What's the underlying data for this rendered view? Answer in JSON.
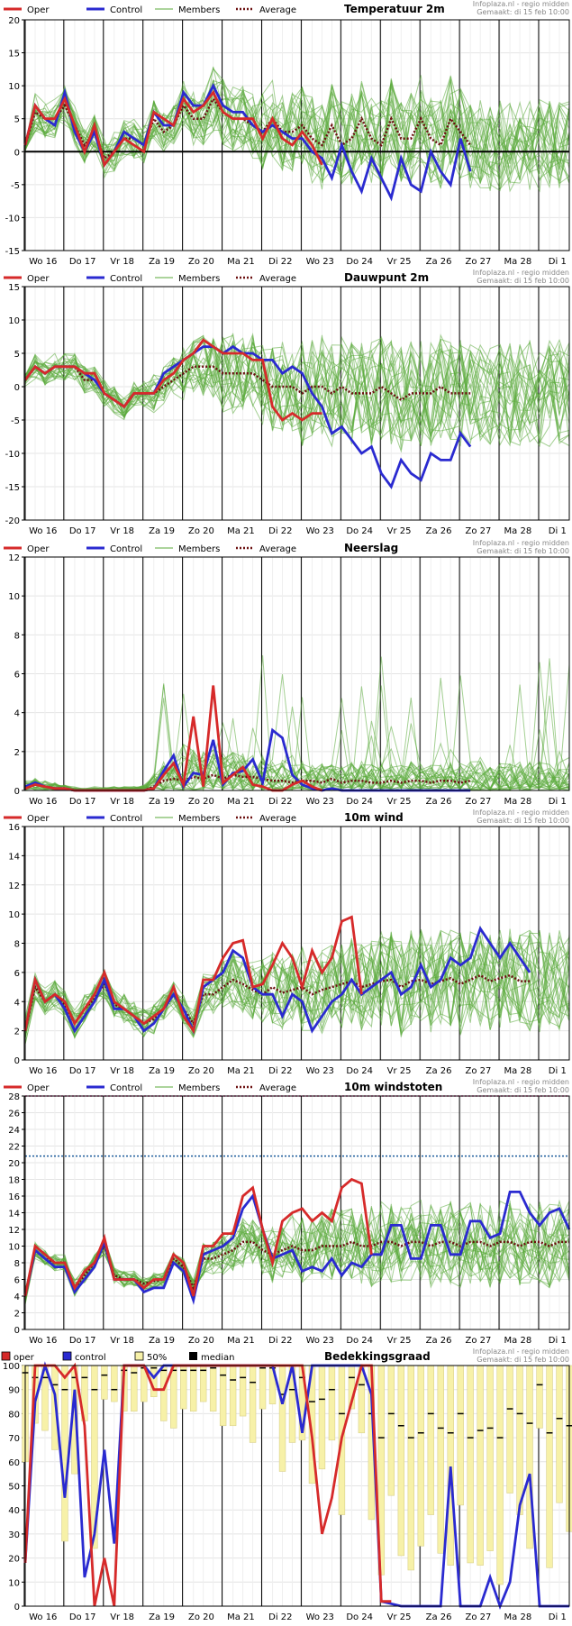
{
  "source": "Infoplaza.nl - regio midden",
  "made": "Gemaakt: di 15 feb 10:00",
  "legend": {
    "oper": "Oper",
    "control": "Control",
    "members": "Members",
    "average": "Average"
  },
  "legend_cloud": {
    "oper": "oper",
    "control": "control",
    "p50": "50%",
    "median": "median"
  },
  "colors": {
    "oper": "#d62a2a",
    "control": "#2a2ad0",
    "members": "#5aaa3a",
    "average": "#6b0f0f",
    "bar": "#f7f1a8",
    "zero": "#000000",
    "dotted_blue": "#1a5a9a",
    "dotted_pink": "#e0409a"
  },
  "day_labels": [
    "Wo 16",
    "Do 17",
    "Vr 18",
    "Za 19",
    "Zo 20",
    "Ma 21",
    "Di 22",
    "Wo 23",
    "Do 24",
    "Vr 25",
    "Za 26",
    "Zo 27",
    "Ma 28",
    "Di 1"
  ],
  "chart_data": [
    {
      "id": "temp",
      "type": "line",
      "title": "Temperatuur 2m",
      "ylim": [
        -15,
        20
      ],
      "yticks": [
        -15,
        -10,
        -5,
        0,
        5,
        10,
        15,
        20
      ],
      "zero_line": true,
      "oper": [
        1,
        7,
        5,
        5,
        8,
        4,
        0,
        4,
        -2,
        0,
        2,
        1,
        0,
        6,
        5,
        4,
        8,
        6,
        7,
        9,
        6,
        5,
        5,
        5,
        2,
        5,
        2,
        1,
        3,
        1,
        -2
      ],
      "control": [
        1,
        7,
        5,
        4,
        9,
        3,
        0,
        3,
        -2,
        0,
        3,
        2,
        1,
        6,
        4,
        4,
        9,
        7,
        7,
        10,
        7,
        6,
        6,
        4,
        3,
        4,
        3,
        2,
        2,
        0,
        -1,
        -4,
        1,
        -3,
        -6,
        -1,
        -4,
        -7,
        -1,
        -5,
        -6,
        0,
        -3,
        -5,
        2,
        -3
      ],
      "average": [
        1,
        6,
        5,
        5,
        7,
        4,
        1,
        3,
        -1,
        0,
        2,
        2,
        1,
        5,
        3,
        4,
        7,
        5,
        5,
        8,
        6,
        5,
        5,
        4,
        3,
        5,
        3,
        3,
        4,
        2,
        1,
        4,
        1,
        2,
        5,
        2,
        1,
        5,
        2,
        2,
        5,
        2,
        1,
        5,
        3,
        1
      ],
      "spread": [
        1,
        3,
        3,
        3,
        3,
        3,
        3,
        3,
        3,
        3,
        3,
        3,
        3,
        3,
        3,
        3,
        4,
        4,
        4,
        5,
        5,
        5,
        5,
        5,
        6,
        6,
        6,
        6,
        6,
        7,
        7,
        7,
        7,
        7,
        7,
        7,
        7,
        7,
        7,
        7,
        7,
        7,
        7,
        7,
        7,
        7
      ]
    },
    {
      "id": "dew",
      "type": "line",
      "title": "Dauwpunt 2m",
      "ylim": [
        -20,
        15
      ],
      "yticks": [
        -20,
        -15,
        -10,
        -5,
        0,
        5,
        10,
        15
      ],
      "oper": [
        1,
        3,
        2,
        3,
        3,
        3,
        2,
        2,
        -1,
        -2,
        -3,
        -1,
        -1,
        -1,
        1,
        2,
        4,
        5,
        7,
        6,
        5,
        5,
        5,
        4,
        4,
        -3,
        -5,
        -4,
        -5,
        -4,
        -4
      ],
      "control": [
        1,
        3,
        2,
        3,
        3,
        3,
        2,
        1,
        -1,
        -2,
        -3,
        -1,
        -1,
        -1,
        2,
        3,
        4,
        5,
        6,
        6,
        5,
        6,
        5,
        5,
        4,
        4,
        2,
        3,
        2,
        -1,
        -3,
        -7,
        -6,
        -8,
        -10,
        -9,
        -13,
        -15,
        -11,
        -13,
        -14,
        -10,
        -11,
        -11,
        -7,
        -9
      ],
      "average": [
        1,
        3,
        2,
        3,
        3,
        3,
        1,
        1,
        -1,
        -2,
        -3,
        -1,
        -1,
        -1,
        0,
        1,
        2,
        3,
        3,
        3,
        2,
        2,
        2,
        2,
        1,
        0,
        0,
        0,
        -1,
        0,
        0,
        -1,
        0,
        -1,
        -1,
        -1,
        0,
        -1,
        -2,
        -1,
        -1,
        -1,
        0,
        -1,
        -1,
        -1
      ],
      "spread": [
        1,
        2,
        2,
        2,
        2,
        2,
        2,
        2,
        2,
        2,
        2,
        2,
        2,
        3,
        3,
        4,
        4,
        4,
        5,
        5,
        6,
        6,
        6,
        6,
        7,
        7,
        7,
        7,
        8,
        8,
        8,
        8,
        8,
        8,
        8,
        8,
        8,
        8,
        8,
        8,
        8,
        8,
        8,
        8,
        8,
        8
      ]
    },
    {
      "id": "rain",
      "type": "line",
      "title": "Neerslag",
      "ylim": [
        0,
        12
      ],
      "yticks": [
        0,
        2,
        4,
        6,
        8,
        10,
        12
      ],
      "oper": [
        0.1,
        0.3,
        0.2,
        0.1,
        0.1,
        0,
        0,
        0,
        0,
        0,
        0,
        0,
        0,
        0.1,
        0.8,
        1.4,
        0.3,
        3.8,
        0.2,
        5.4,
        0.4,
        0.8,
        1.2,
        0.3,
        0.2,
        0,
        0,
        0.3,
        0.5,
        0.2,
        0
      ],
      "control": [
        0.2,
        0.4,
        0.2,
        0.1,
        0.1,
        0,
        0,
        0,
        0,
        0,
        0,
        0,
        0,
        0.1,
        1.0,
        1.8,
        0.2,
        0.9,
        0.8,
        2.6,
        0.3,
        0.9,
        1.0,
        1.6,
        0.4,
        3.1,
        2.7,
        0.8,
        0.3,
        0.1,
        0,
        0.1,
        0,
        0,
        0,
        0,
        0,
        0,
        0,
        0,
        0,
        0,
        0,
        0,
        0,
        0
      ],
      "average": [
        0.2,
        0.3,
        0.2,
        0.1,
        0.1,
        0,
        0,
        0,
        0,
        0,
        0,
        0,
        0,
        0.2,
        0.5,
        0.6,
        0.5,
        0.7,
        0.6,
        0.8,
        0.6,
        0.8,
        0.7,
        0.7,
        0.6,
        0.5,
        0.5,
        0.4,
        0.5,
        0.5,
        0.4,
        0.6,
        0.4,
        0.5,
        0.5,
        0.4,
        0.4,
        0.5,
        0.4,
        0.5,
        0.5,
        0.4,
        0.5,
        0.5,
        0.4,
        0.5
      ],
      "spread": [
        0.3,
        0.4,
        0.3,
        0.3,
        0.2,
        0.1,
        0.1,
        0.1,
        0.1,
        0.1,
        0.1,
        0.2,
        0.3,
        0.6,
        1.0,
        1.2,
        1.2,
        1.4,
        1.4,
        1.4,
        1.3,
        1.3,
        1.3,
        1.2,
        1.2,
        1.1,
        1.1,
        1.0,
        1.0,
        1.0,
        1.0,
        1.0,
        1.0,
        1.0,
        1.0,
        1.0,
        1.0,
        1.0,
        1.0,
        1.0,
        1.0,
        1.0,
        1.0,
        1.0,
        1.0,
        1.0
      ]
    },
    {
      "id": "wind",
      "type": "line",
      "title": "10m wind",
      "ylim": [
        0,
        16
      ],
      "yticks": [
        0,
        2,
        4,
        6,
        8,
        10,
        12,
        14,
        16
      ],
      "oper": [
        2,
        5.5,
        4,
        4.5,
        4,
        2.5,
        3.5,
        4.5,
        6,
        4,
        3.5,
        3,
        2.5,
        3,
        3.5,
        5,
        3,
        2,
        5.5,
        5.5,
        7,
        8,
        8.2,
        5,
        5.2,
        6.5,
        8,
        7,
        5,
        7.5,
        6,
        7,
        9.5,
        9.8,
        4.5
      ],
      "control": [
        2,
        5.5,
        4,
        4.5,
        3.5,
        2,
        3,
        4,
        5.5,
        3.5,
        3.5,
        3,
        2,
        2.5,
        3.5,
        4.5,
        3.5,
        2,
        5,
        5.5,
        6,
        7.5,
        7,
        5,
        4.5,
        4.5,
        3,
        4.5,
        4,
        2,
        3,
        4,
        4.5,
        5.5,
        4.5,
        5,
        5.5,
        6,
        4.5,
        5,
        6.5,
        5,
        5.5,
        7,
        6.5,
        7,
        9,
        8,
        7,
        8,
        7,
        6
      ],
      "average": [
        2,
        5,
        4,
        4.5,
        3.8,
        2.5,
        3.5,
        4.2,
        5.2,
        3.8,
        3.5,
        3,
        2.5,
        2.8,
        3.5,
        4.5,
        3.5,
        2.5,
        4.5,
        4.5,
        5,
        5.5,
        5.2,
        4.8,
        4.5,
        5,
        4.6,
        4.8,
        5,
        4.5,
        4.8,
        5,
        5.2,
        5.4,
        5,
        5.2,
        5.4,
        5.5,
        5,
        5.4,
        5.5,
        5.2,
        5.4,
        5.6,
        5.2,
        5.5,
        5.8,
        5.4,
        5.6,
        5.8,
        5.4,
        5.4
      ],
      "spread": [
        1,
        1,
        1,
        1,
        1,
        1,
        1,
        1,
        1,
        1,
        1,
        1,
        1,
        1,
        1,
        1,
        1,
        1,
        1.5,
        1.5,
        2,
        2,
        2,
        2,
        2.5,
        2.5,
        2.5,
        2.5,
        3,
        3,
        3,
        3,
        3,
        3,
        3,
        3,
        3.5,
        3.5,
        3.5,
        3.5,
        3.5,
        3.5,
        3.5,
        3.5,
        3.5,
        3.5,
        3.5,
        3.5,
        3.5,
        3.5,
        3.5,
        3.5
      ]
    },
    {
      "id": "gust",
      "type": "line",
      "title": "10m windstoten",
      "ylim": [
        0,
        28
      ],
      "yticks": [
        0,
        2,
        4,
        6,
        8,
        10,
        12,
        14,
        16,
        18,
        20,
        22,
        24,
        26,
        28
      ],
      "ref_lines": [
        {
          "value": 28,
          "color": "dotted_pink"
        },
        {
          "value": 20.8,
          "color": "dotted_blue"
        }
      ],
      "oper": [
        4,
        10,
        9,
        8,
        8,
        5,
        7,
        8,
        11,
        6,
        6,
        6,
        5,
        6,
        6,
        9,
        8,
        4,
        10,
        10,
        11.5,
        11.5,
        16,
        17,
        12,
        8,
        13,
        14,
        14.5,
        13,
        14,
        13,
        17,
        18,
        17.5,
        9
      ],
      "control": [
        4,
        9.5,
        8.5,
        7.5,
        7.5,
        4.5,
        6,
        7.5,
        10.5,
        6,
        6,
        6,
        4.5,
        5,
        5,
        8,
        7,
        3.5,
        9,
        9.5,
        10,
        11,
        14.5,
        16,
        12,
        8.5,
        9,
        9.5,
        7,
        7.5,
        7,
        8.5,
        6.5,
        8,
        7.5,
        9,
        9,
        12.5,
        12.5,
        8.5,
        8.5,
        12.5,
        12.5,
        9,
        9,
        13,
        13,
        11,
        11.5,
        16.5,
        16.5,
        14,
        12.5,
        14,
        14.5,
        12
      ],
      "average": [
        4,
        9.5,
        8.5,
        8,
        8,
        5,
        6.5,
        8,
        10,
        6.5,
        6,
        6,
        5.5,
        5.8,
        6,
        8.5,
        7.5,
        5,
        8.5,
        8.5,
        9,
        9.5,
        10.5,
        10.5,
        9.5,
        9,
        9.5,
        10,
        9.5,
        9.5,
        10,
        10,
        10,
        10.5,
        10,
        10,
        10.5,
        10.5,
        10,
        10.5,
        10.5,
        10,
        10.5,
        10.5,
        10,
        10.5,
        10.5,
        10,
        10.5,
        10.5,
        10,
        10.5,
        10.5,
        10,
        10.5,
        10.5
      ],
      "spread": [
        1,
        1,
        1,
        1,
        1,
        1,
        1,
        1,
        1,
        1,
        1,
        1,
        1,
        1,
        1,
        1,
        1,
        1,
        2,
        2,
        2.5,
        2.5,
        3,
        3,
        3,
        3.5,
        3.5,
        4,
        4,
        4,
        4,
        4.5,
        4.5,
        4.5,
        4.5,
        5,
        5,
        5,
        5,
        5,
        5,
        5,
        5,
        5,
        5,
        5,
        5,
        5,
        5,
        5,
        5,
        5,
        5,
        5,
        5,
        5
      ]
    },
    {
      "id": "cloud",
      "type": "bar",
      "title": "Bedekkingsgraad",
      "ylim": [
        0,
        100
      ],
      "yticks": [
        0,
        10,
        20,
        30,
        40,
        50,
        60,
        70,
        80,
        90,
        100
      ],
      "oper": [
        18,
        100,
        100,
        100,
        95,
        100,
        75,
        0,
        20,
        0,
        100,
        100,
        100,
        90,
        90,
        100,
        100,
        100,
        100,
        100,
        100,
        100,
        100,
        100,
        100,
        100,
        100,
        100,
        100,
        70,
        30,
        45,
        70,
        85,
        100,
        100,
        2,
        2
      ],
      "control": [
        18,
        85,
        100,
        88,
        45,
        90,
        12,
        30,
        65,
        26,
        100,
        100,
        100,
        95,
        100,
        100,
        100,
        100,
        100,
        100,
        100,
        100,
        100,
        100,
        100,
        100,
        84,
        100,
        72,
        100,
        100,
        100,
        100,
        100,
        100,
        88,
        2,
        1,
        0,
        0,
        0,
        0,
        0,
        58,
        0,
        0,
        0,
        12,
        0,
        10,
        42,
        55,
        0,
        0,
        0,
        0
      ],
      "p50": [
        72,
        95,
        90,
        80,
        40,
        75,
        95,
        40,
        100,
        97,
        100,
        98,
        100,
        100,
        97,
        92,
        98,
        95,
        97,
        100,
        92,
        90,
        92,
        88,
        100,
        100,
        70,
        80,
        88,
        68,
        72,
        82,
        58,
        100,
        88,
        50,
        25,
        65,
        38,
        30,
        38,
        58,
        40,
        33,
        56,
        30,
        36,
        40,
        24,
        60,
        58,
        42,
        90,
        30,
        55,
        50
      ],
      "median": [
        97,
        95,
        95,
        92,
        90,
        95,
        95,
        90,
        96,
        90,
        98,
        97,
        99,
        99,
        98,
        98,
        98,
        98,
        98,
        99,
        96,
        94,
        95,
        93,
        99,
        99,
        88,
        90,
        95,
        85,
        86,
        90,
        80,
        95,
        92,
        80,
        70,
        80,
        75,
        70,
        72,
        80,
        74,
        72,
        80,
        70,
        73,
        74,
        70,
        82,
        80,
        76,
        92,
        72,
        78,
        75
      ]
    }
  ]
}
